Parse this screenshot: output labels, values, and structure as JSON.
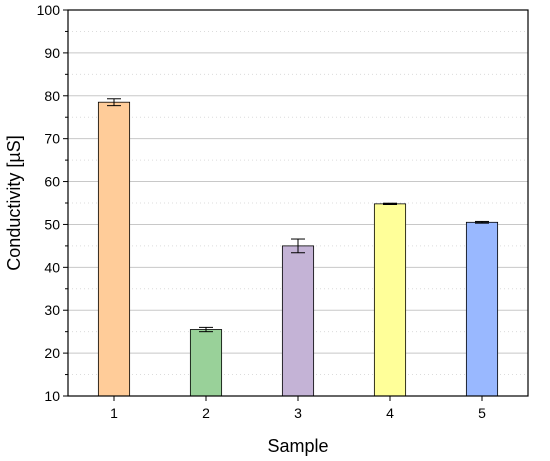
{
  "chart_data": {
    "type": "bar",
    "xlabel": "Sample",
    "ylabel": "Conductivity [µS]",
    "categories": [
      "1",
      "2",
      "3",
      "4",
      "5"
    ],
    "values": [
      78.5,
      25.5,
      45.0,
      54.8,
      50.5
    ],
    "errors": [
      0.8,
      0.5,
      1.6,
      0.15,
      0.2
    ],
    "colors": [
      "#FFCC99",
      "#99D199",
      "#C4B3D6",
      "#FFFF99",
      "#99B8FF"
    ],
    "ylim": [
      10,
      100
    ],
    "yticks": [
      10,
      20,
      30,
      40,
      50,
      60,
      70,
      80,
      90,
      100
    ],
    "grid": true
  }
}
